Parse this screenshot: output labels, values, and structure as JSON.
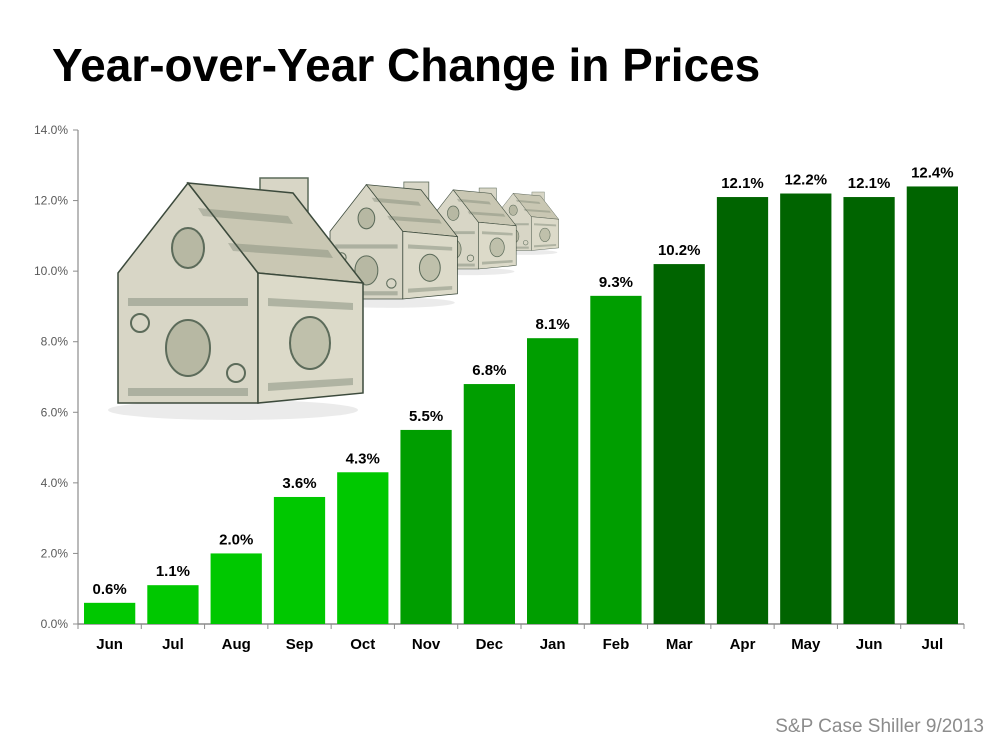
{
  "title": "Year-over-Year Change in Prices",
  "source": "S&P Case Shiller 9/2013",
  "chart_data": {
    "type": "bar",
    "title": "Year-over-Year Change in Prices",
    "xlabel": "",
    "ylabel": "",
    "categories": [
      "Jun",
      "Jul",
      "Aug",
      "Sep",
      "Oct",
      "Nov",
      "Dec",
      "Jan",
      "Feb",
      "Mar",
      "Apr",
      "May",
      "Jun",
      "Jul"
    ],
    "values": [
      0.6,
      1.1,
      2.0,
      3.6,
      4.3,
      5.5,
      6.8,
      8.1,
      9.3,
      10.2,
      12.1,
      12.2,
      12.1,
      12.4
    ],
    "data_labels": [
      "0.6%",
      "1.1%",
      "2.0%",
      "3.6%",
      "4.3%",
      "5.5%",
      "6.8%",
      "8.1%",
      "9.3%",
      "10.2%",
      "12.1%",
      "12.2%",
      "12.1%",
      "12.4%"
    ],
    "ylim": [
      0,
      14
    ],
    "yticks": [
      0,
      2,
      4,
      6,
      8,
      10,
      12,
      14
    ],
    "ytick_labels": [
      "0.0%",
      "2.0%",
      "4.0%",
      "6.0%",
      "8.0%",
      "10.0%",
      "12.0%",
      "14.0%"
    ],
    "grid": false,
    "bar_colors": [
      "#00c800",
      "#00c800",
      "#00c800",
      "#00c800",
      "#00c800",
      "#009e00",
      "#009e00",
      "#009e00",
      "#009e00",
      "#006400",
      "#006400",
      "#006400",
      "#006400",
      "#006400"
    ],
    "axis_color": "#8c8c8c"
  },
  "illustration": {
    "icon": "dollar-bill-houses-icon",
    "colors": {
      "bill": "#d8d6c6",
      "ink": "#5c6b5a",
      "dark": "#3c4a3c"
    }
  }
}
